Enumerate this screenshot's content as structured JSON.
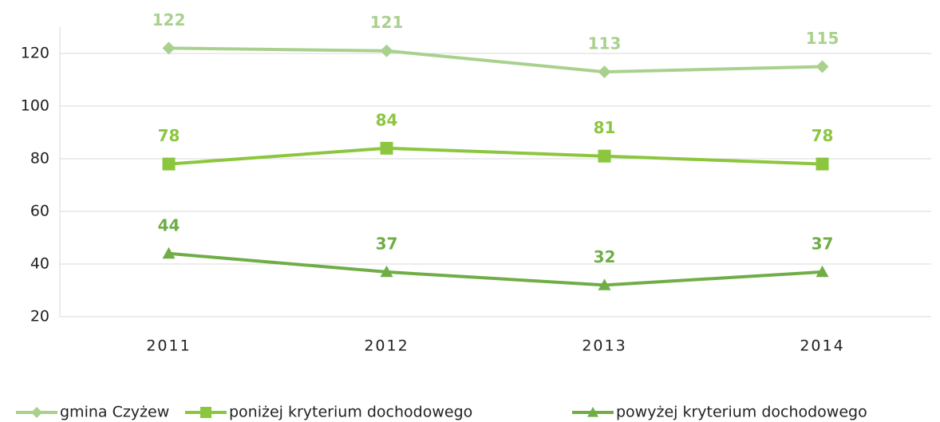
{
  "chart_data": {
    "type": "line",
    "categories": [
      "2011",
      "2012",
      "2013",
      "2014"
    ],
    "series": [
      {
        "name": "gmina Czyżew",
        "color": "#a9d18e",
        "marker": "diamond",
        "values": [
          122,
          121,
          113,
          115
        ]
      },
      {
        "name": "poniżej kryterium dochodowego",
        "color": "#8cc63f",
        "marker": "square",
        "values": [
          78,
          84,
          81,
          78
        ]
      },
      {
        "name": "powyżej kryterium dochodowego",
        "color": "#70ad47",
        "marker": "triangle",
        "values": [
          44,
          37,
          32,
          37
        ]
      }
    ],
    "ylim": [
      20,
      130
    ],
    "yticks": [
      20,
      40,
      60,
      80,
      100,
      120
    ],
    "grid": true,
    "legend": "bottom"
  }
}
